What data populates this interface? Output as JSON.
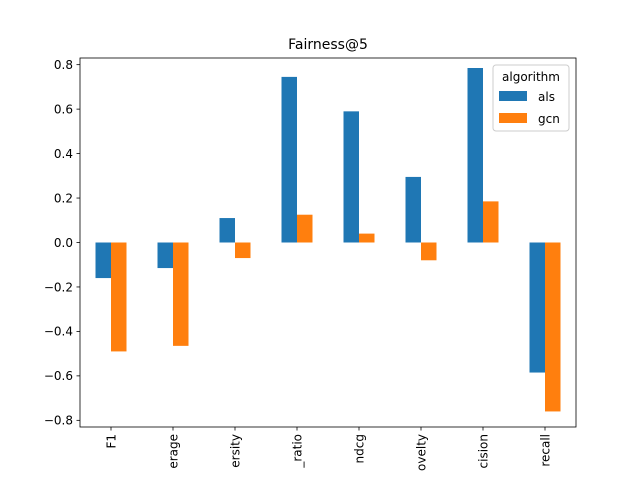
{
  "chart_data": {
    "type": "bar",
    "title": "Fairness@5",
    "xlabel": "",
    "ylabel": "",
    "categories": [
      "F1",
      "erage",
      "ersity",
      "_ratio",
      "ndcg",
      "ovelty",
      "cision",
      "recall"
    ],
    "series": [
      {
        "name": "als",
        "color": "#1f77b4",
        "values": [
          -0.16,
          -0.115,
          0.11,
          0.745,
          0.59,
          0.295,
          0.785,
          -0.585
        ]
      },
      {
        "name": "gcn",
        "color": "#ff7f0e",
        "values": [
          -0.49,
          -0.465,
          -0.07,
          0.125,
          0.04,
          -0.08,
          0.185,
          -0.76
        ]
      }
    ],
    "ylim": [
      -0.83,
      0.83
    ],
    "yticks": [
      -0.8,
      -0.6,
      -0.4,
      -0.2,
      0.0,
      0.2,
      0.4,
      0.6,
      0.8
    ],
    "ytick_labels": [
      "−0.8",
      "−0.6",
      "−0.4",
      "−0.2",
      "0.0",
      "0.2",
      "0.4",
      "0.6",
      "0.8"
    ],
    "grid": false,
    "legend": {
      "title": "algorithm",
      "placement": "top-right"
    }
  }
}
